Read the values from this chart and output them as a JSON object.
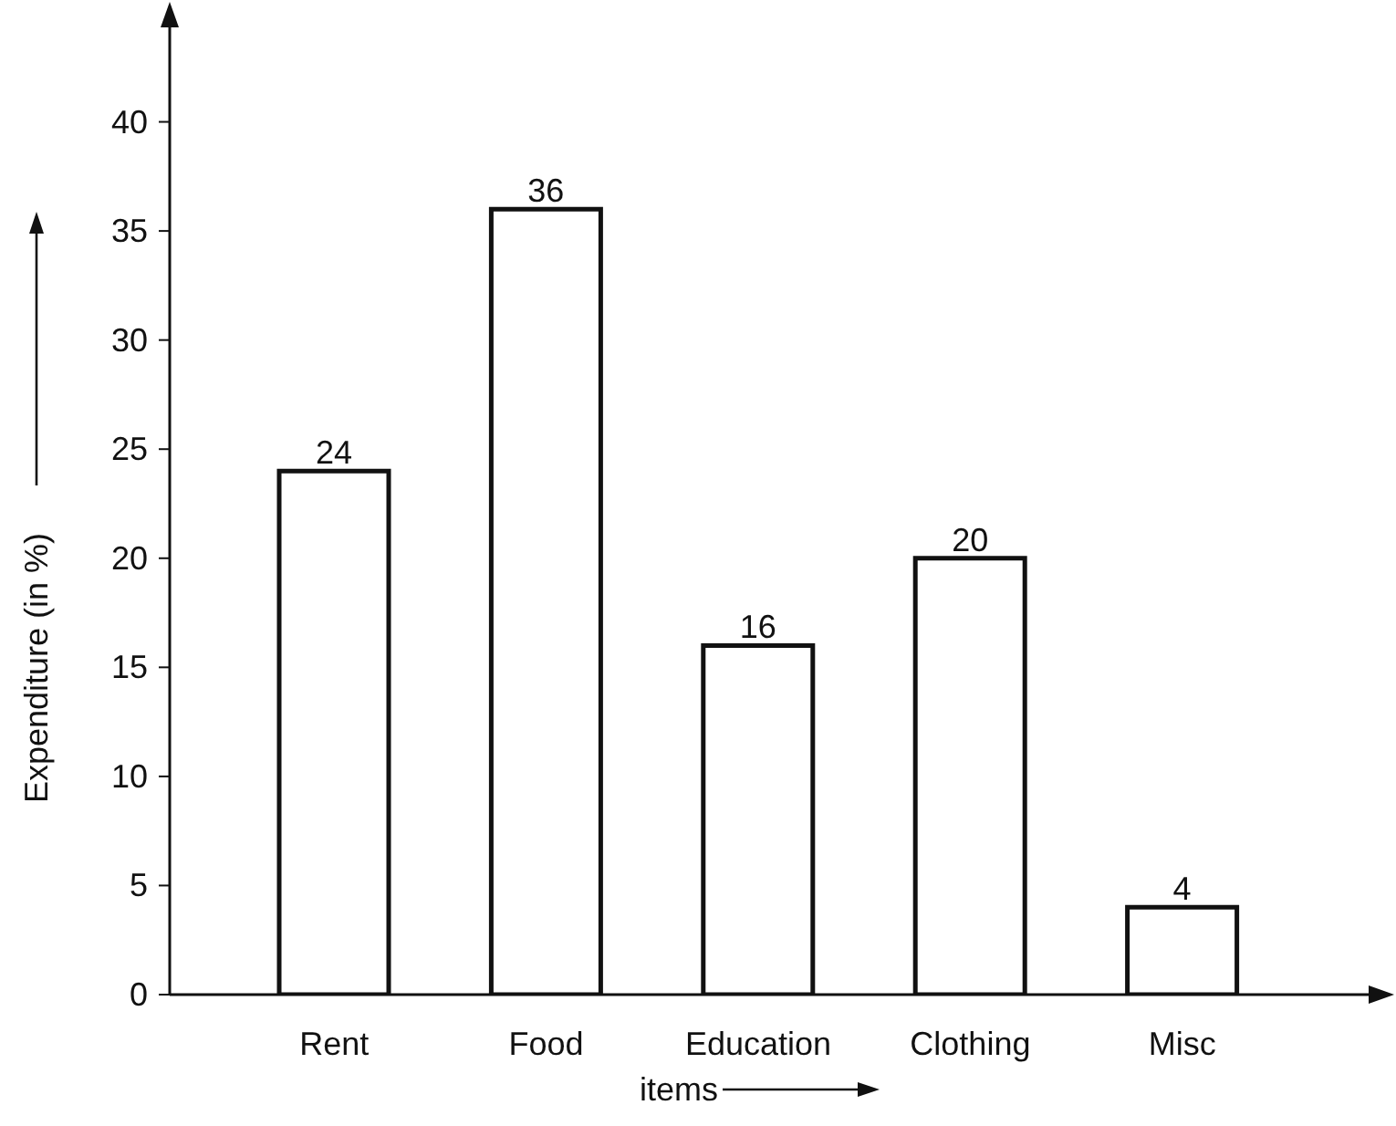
{
  "chart_data": {
    "type": "bar",
    "xlabel": "items",
    "ylabel": "Expenditure (in %)",
    "categories": [
      "Rent",
      "Food",
      "Education",
      "Clothing",
      "Misc"
    ],
    "values": [
      24,
      36,
      16,
      20,
      4
    ],
    "color": "#ffffff",
    "ylim": [
      0,
      45
    ],
    "yticks": [
      0,
      5,
      10,
      15,
      20,
      25,
      30,
      35,
      40
    ],
    "data_labels": true,
    "grid": false,
    "legend": false
  }
}
